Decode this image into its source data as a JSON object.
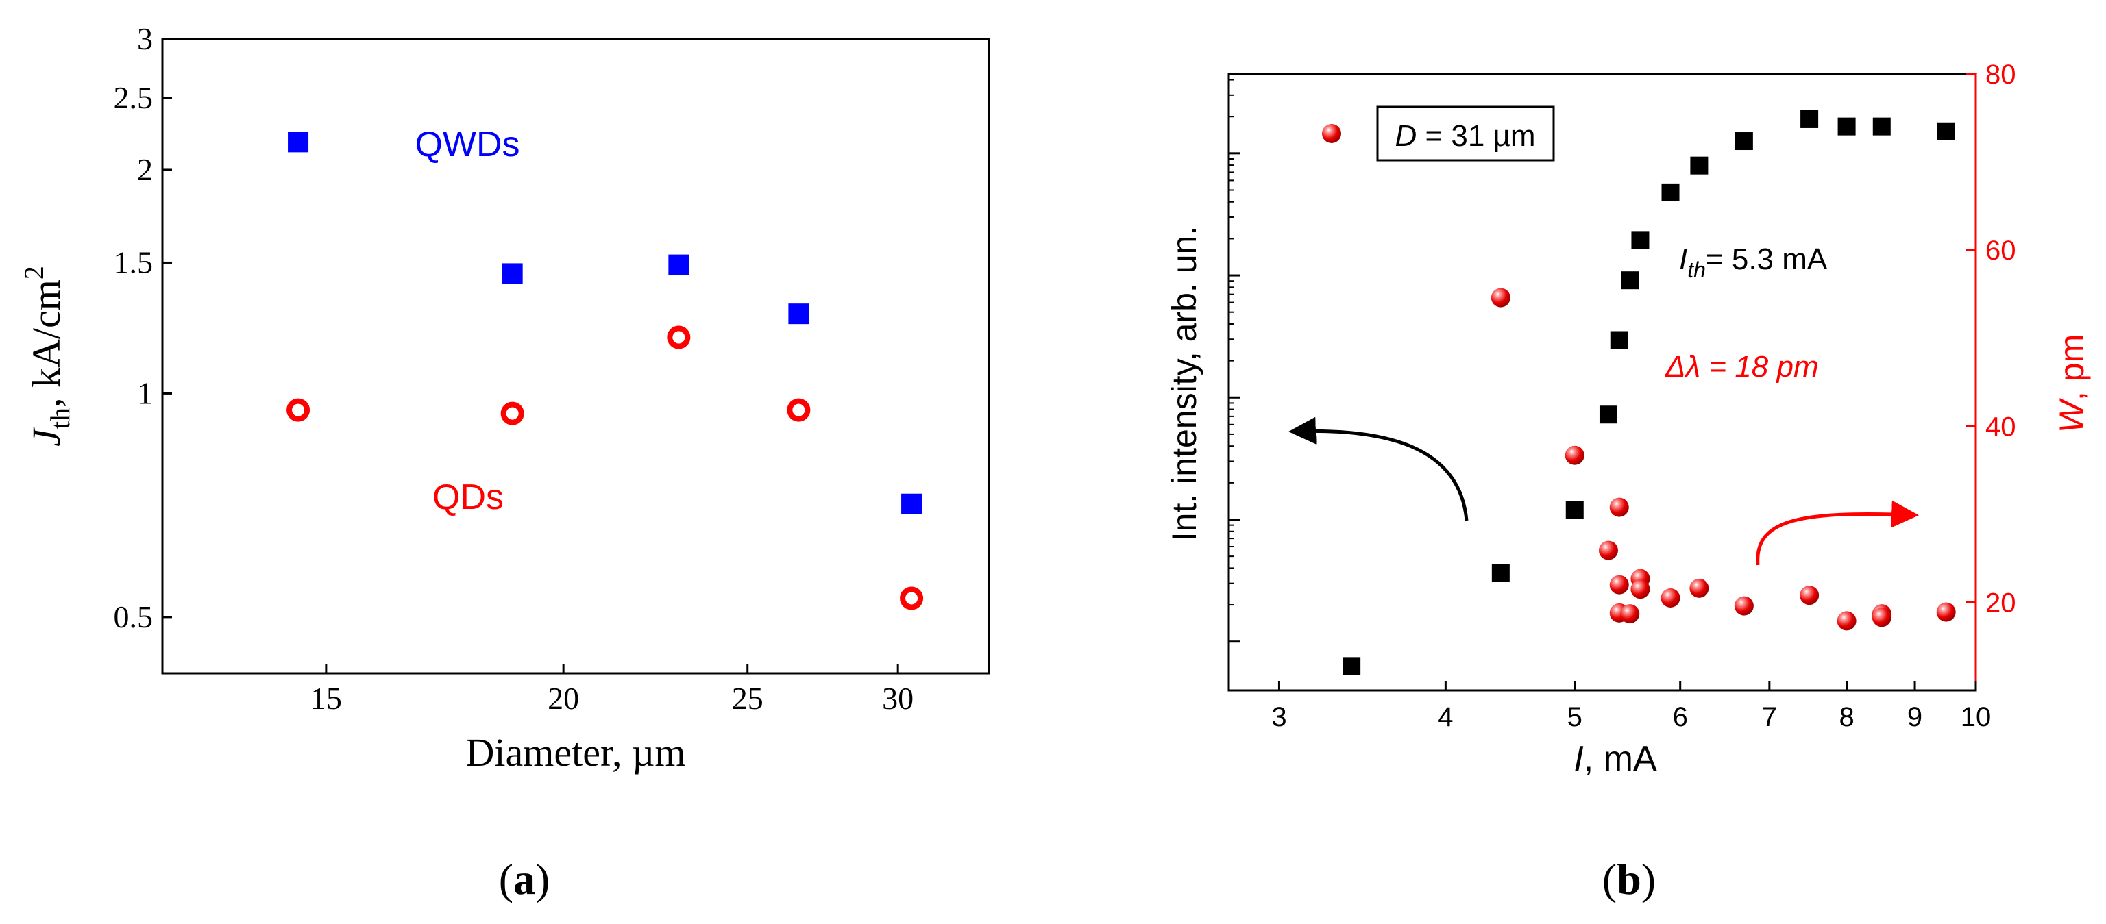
{
  "chart_data": [
    {
      "id": "a",
      "type": "scatter",
      "panel_label": "(a)",
      "xlabel": "Diameter, µm",
      "ylabel_main": "J",
      "ylabel_sub": "th",
      "ylabel_unit": ", kA/cm",
      "ylabel_sup": "2",
      "x_scale": "log",
      "y_scale": "log",
      "xlim": [
        12.3,
        33.5
      ],
      "ylim": [
        0.42,
        3
      ],
      "xticks": [
        15,
        20,
        25,
        30
      ],
      "yticks": [
        0.5,
        1,
        1.5,
        2,
        2.5,
        3
      ],
      "series": [
        {
          "name": "QWDs",
          "marker": "filled-square",
          "color": "#0000ff",
          "x": [
            14.5,
            18.8,
            23.0,
            26.6,
            30.5
          ],
          "y": [
            2.18,
            1.45,
            1.49,
            1.28,
            0.71
          ]
        },
        {
          "name": "QDs",
          "marker": "open-circle",
          "color": "#ff0000",
          "x": [
            14.5,
            18.8,
            23.0,
            26.6,
            30.5
          ],
          "y": [
            0.95,
            0.94,
            1.19,
            0.95,
            0.53
          ]
        }
      ],
      "annotations": [
        {
          "text": "QWDs",
          "color": "#0000ff"
        },
        {
          "text": "QDs",
          "color": "#ff0000"
        }
      ]
    },
    {
      "id": "b",
      "type": "scatter",
      "panel_label": "(b)",
      "xlabel_italic": "I",
      "xlabel_rest": ", mA",
      "ylabel_left": "Int.  intensity, arb. un.",
      "ylabel_right_italic": "W",
      "ylabel_right_rest": ", pm",
      "x_scale": "log",
      "xlim": [
        2.75,
        10.0
      ],
      "xticks": [
        3,
        4,
        5,
        6,
        7,
        8,
        9,
        10
      ],
      "y_left_scale": "log",
      "y_left_range_decades": [
        -4.4,
        0.65
      ],
      "y_left_major_tick_exponents": [
        -4,
        -3,
        -2,
        -1,
        0
      ],
      "y_right_lim": [
        10,
        80
      ],
      "y_right_ticks": [
        20,
        40,
        60,
        80
      ],
      "right_axis_color": "#ff0000",
      "series": [
        {
          "name": "Int. intensity",
          "axis": "left",
          "marker": "filled-square",
          "color": "#000000",
          "x": [
            3.4,
            4.4,
            5.0,
            5.3,
            5.4,
            5.5,
            5.6,
            5.9,
            6.2,
            6.7,
            7.5,
            8.0,
            8.5,
            9.5
          ],
          "log10_y": [
            -4.2,
            -3.44,
            -2.92,
            -2.14,
            -1.53,
            -1.04,
            -0.71,
            -0.32,
            -0.1,
            0.1,
            0.28,
            0.22,
            0.22,
            0.18
          ]
        },
        {
          "name": "W",
          "axis": "right",
          "marker": "red-sphere",
          "color": "#ff0000",
          "x": [
            4.4,
            5.0,
            5.3,
            5.4,
            5.4,
            5.4,
            5.5,
            5.6,
            5.6,
            5.9,
            6.2,
            6.7,
            7.5,
            8.0,
            8.5,
            8.5,
            9.5
          ],
          "y": [
            54.6,
            36.7,
            25.9,
            30.8,
            22.0,
            18.8,
            18.7,
            22.7,
            21.5,
            20.5,
            21.6,
            19.6,
            20.8,
            17.9,
            18.7,
            18.3,
            18.9
          ]
        }
      ],
      "legend_text_italic": "D",
      "legend_text_rest": " = 31 µm",
      "annotation_ith_italic": "I",
      "annotation_ith_sub": "th",
      "annotation_ith_rest": "= 5.3 mA",
      "annotation_dl": "Δλ = 18 pm"
    }
  ]
}
